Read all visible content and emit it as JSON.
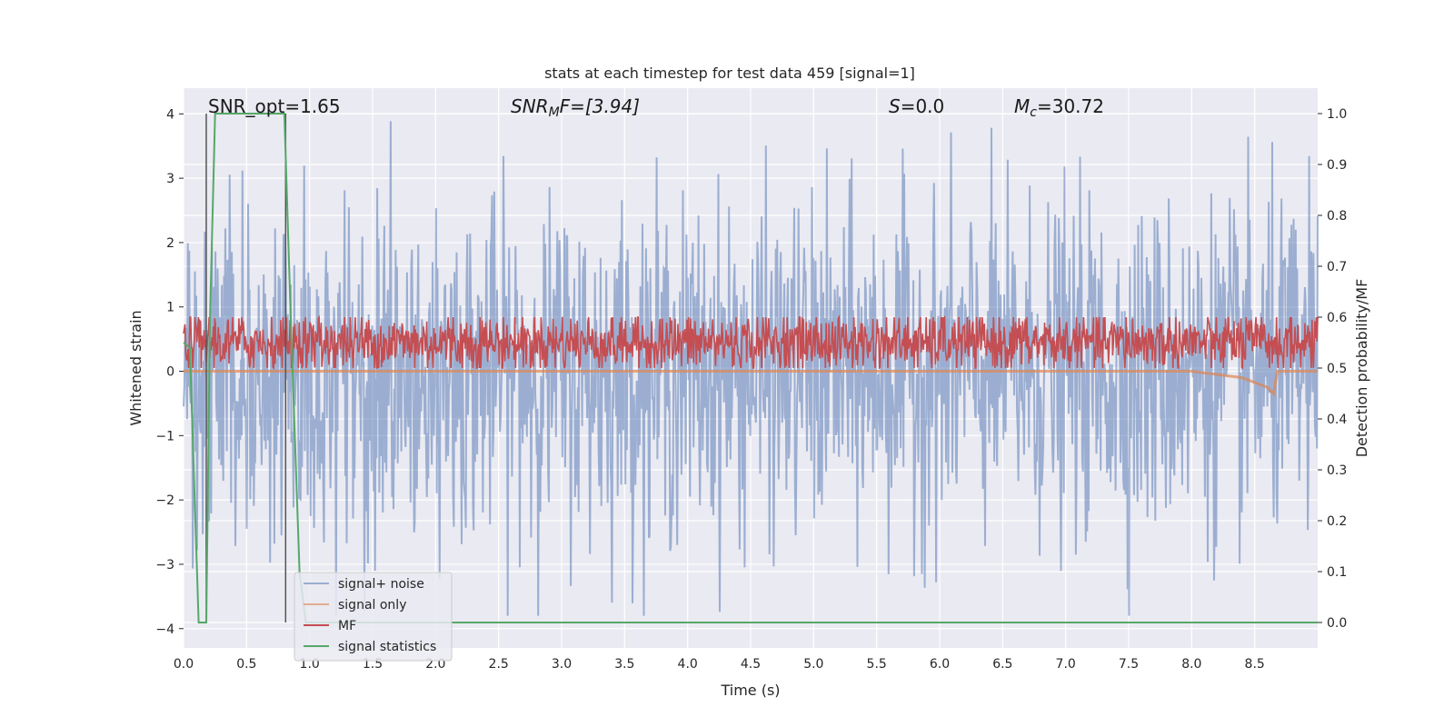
{
  "chart_data": {
    "type": "line",
    "title": "stats at each timestep for test data 459 [signal=1]",
    "xlabel": "Time (s)",
    "ylabel": "Whitened strain",
    "ylabel_right": "Detection probability/MF",
    "xlim": [
      0.0,
      9.0
    ],
    "ylim": [
      -4.3,
      4.4
    ],
    "ylim_right": [
      -0.05,
      1.05
    ],
    "x_ticks": [
      "0.0",
      "0.5",
      "1.0",
      "1.5",
      "2.0",
      "2.5",
      "3.0",
      "3.5",
      "4.0",
      "4.5",
      "5.0",
      "5.5",
      "6.0",
      "6.5",
      "7.0",
      "7.5",
      "8.0",
      "8.5"
    ],
    "y_ticks": [
      "4",
      "3",
      "2",
      "1",
      "0",
      "−1",
      "−2",
      "−3",
      "−4"
    ],
    "y_ticks_right": [
      "1.0",
      "0.9",
      "0.8",
      "0.7",
      "0.6",
      "0.5",
      "0.4",
      "0.3",
      "0.2",
      "0.1",
      "0.0"
    ],
    "grid": true,
    "legend_position": "lower-left",
    "annotations": {
      "snr_opt": "SNR_opt=1.65",
      "snr_mf": "SNR",
      "snr_mf_sub": "M",
      "snr_mf_rest": "F=[3.94]",
      "s_italic": "S",
      "s_value": "=0.0",
      "mc_italic": "M",
      "mc_sub": "c",
      "mc_value": "=30.72"
    },
    "vertical_markers_s": [
      0.18,
      0.81
    ],
    "series": [
      {
        "name": "signal+ noise",
        "color": "#4c72b0",
        "noise_envelope": {
          "max": 4.0,
          "min": -3.8,
          "typical_abs": 1.5
        }
      },
      {
        "name": "signal only",
        "color": "#dd8452",
        "points": [
          [
            0.0,
            0.0
          ],
          [
            8.0,
            0.0
          ],
          [
            8.4,
            -0.1
          ],
          [
            8.6,
            -0.25
          ],
          [
            8.65,
            -0.35
          ],
          [
            8.68,
            0.0
          ],
          [
            9.0,
            0.0
          ]
        ]
      },
      {
        "name": "MF",
        "color": "#c44e52",
        "band_right_axis": {
          "min": 0.5,
          "max": 0.6,
          "typical": 0.55
        }
      },
      {
        "name": "signal statistics",
        "color": "#55a868",
        "points_right_axis": [
          [
            0.0,
            0.55
          ],
          [
            0.05,
            0.54
          ],
          [
            0.12,
            0.0
          ],
          [
            0.18,
            0.0
          ],
          [
            0.21,
            0.6
          ],
          [
            0.25,
            1.0
          ],
          [
            0.8,
            1.0
          ],
          [
            0.85,
            0.6
          ],
          [
            0.92,
            0.1
          ],
          [
            0.97,
            0.0
          ],
          [
            9.0,
            0.0
          ]
        ]
      }
    ]
  },
  "legend": {
    "items": [
      "signal+ noise",
      "signal only",
      "MF",
      "signal statistics"
    ]
  }
}
